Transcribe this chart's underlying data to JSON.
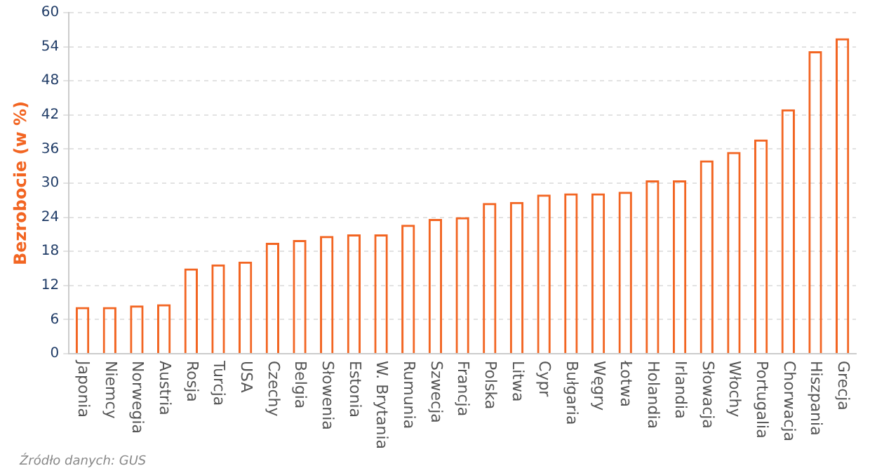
{
  "chart_data": {
    "type": "bar",
    "ylabel": "Bezrobocie (w %)",
    "categories": [
      "Japonia",
      "Niemcy",
      "Norwegia",
      "Austria",
      "Rosja",
      "Turcja",
      "USA",
      "Czechy",
      "Belgia",
      "Słowenia",
      "Estonia",
      "W. Brytania",
      "Rumunia",
      "Szwecja",
      "Francja",
      "Polska",
      "Litwa",
      "Cypr",
      "Bułgaria",
      "Węgry",
      "Łotwa",
      "Holandia",
      "Irlandia",
      "Słowacja",
      "Włochy",
      "Portugalia",
      "Chorwacja",
      "Hiszpania",
      "Grecja"
    ],
    "values": [
      8.2,
      8.2,
      8.5,
      8.7,
      15.0,
      15.7,
      16.2,
      19.5,
      20.0,
      20.7,
      21.0,
      21.0,
      22.7,
      23.7,
      24.0,
      26.5,
      26.7,
      28.0,
      28.2,
      28.2,
      28.5,
      30.5,
      30.5,
      34.0,
      35.5,
      37.7,
      43.0,
      53.2,
      55.5
    ],
    "color": "#f26522",
    "ylim": [
      0,
      60
    ],
    "yticks": [
      0,
      6,
      12,
      18,
      24,
      30,
      36,
      42,
      48,
      54,
      60
    ],
    "grid": "y",
    "annotations": [
      "Źródło danych: GUS"
    ]
  }
}
